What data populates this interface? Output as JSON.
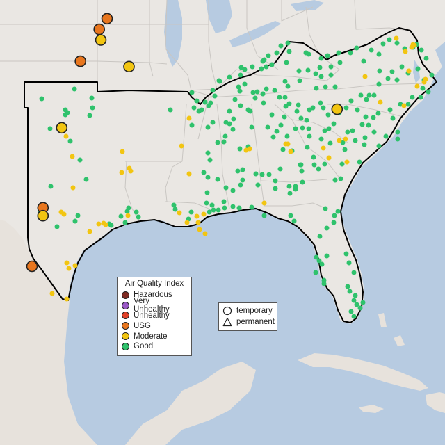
{
  "colors": {
    "water": "#b7cbe1",
    "land": "#eae7e3",
    "land_foreign": "#e7e2dc",
    "boundary": "#c9c6c2",
    "region_outline": "#000000",
    "hazardous": "#7e2a22",
    "very_unhealthy": "#9b59c6",
    "unhealthy": "#e04128",
    "usg": "#e8761e",
    "moderate": "#f2c511",
    "good": "#2fc26c"
  },
  "legend_aqi": {
    "title": "Air Quality Index",
    "items": [
      {
        "key": "hazardous",
        "label": "Hazardous",
        "color": "#7e2a22"
      },
      {
        "key": "very_unhealthy",
        "label": "Very Unhealthy",
        "color": "#9b59c6"
      },
      {
        "key": "unhealthy",
        "label": "Unhealthy",
        "color": "#e04128"
      },
      {
        "key": "usg",
        "label": "USG",
        "color": "#e8761e"
      },
      {
        "key": "moderate",
        "label": "Moderate",
        "color": "#f2c511"
      },
      {
        "key": "good",
        "label": "Good",
        "color": "#2fc26c"
      }
    ]
  },
  "legend_type": {
    "temporary_label": "temporary",
    "permanent_label": "permanent"
  },
  "monitors": [
    {
      "aqi": "usg",
      "type": "temporary",
      "lat": 36.7,
      "lon": -96.7
    },
    {
      "aqi": "usg",
      "type": "temporary",
      "lat": 36.3,
      "lon": -97.2
    },
    {
      "aqi": "moderate",
      "type": "temporary",
      "lat": 35.9,
      "lon": -97.1
    },
    {
      "aqi": "usg",
      "type": "temporary",
      "lat": 35.1,
      "lon": -98.4
    },
    {
      "aqi": "moderate",
      "type": "temporary",
      "lat": 34.9,
      "lon": -95.3
    },
    {
      "aqi": "moderate",
      "type": "temporary",
      "lat": 32.6,
      "lon": -99.6
    },
    {
      "aqi": "usg",
      "type": "temporary",
      "lat": 29.6,
      "lon": -100.8
    },
    {
      "aqi": "moderate",
      "type": "temporary",
      "lat": 29.3,
      "lon": -100.8
    },
    {
      "aqi": "usg",
      "type": "temporary",
      "lat": 27.4,
      "lon": -101.5
    },
    {
      "aqi": "moderate",
      "type": "temporary",
      "lat": 33.3,
      "lon": -82.0
    }
  ]
}
